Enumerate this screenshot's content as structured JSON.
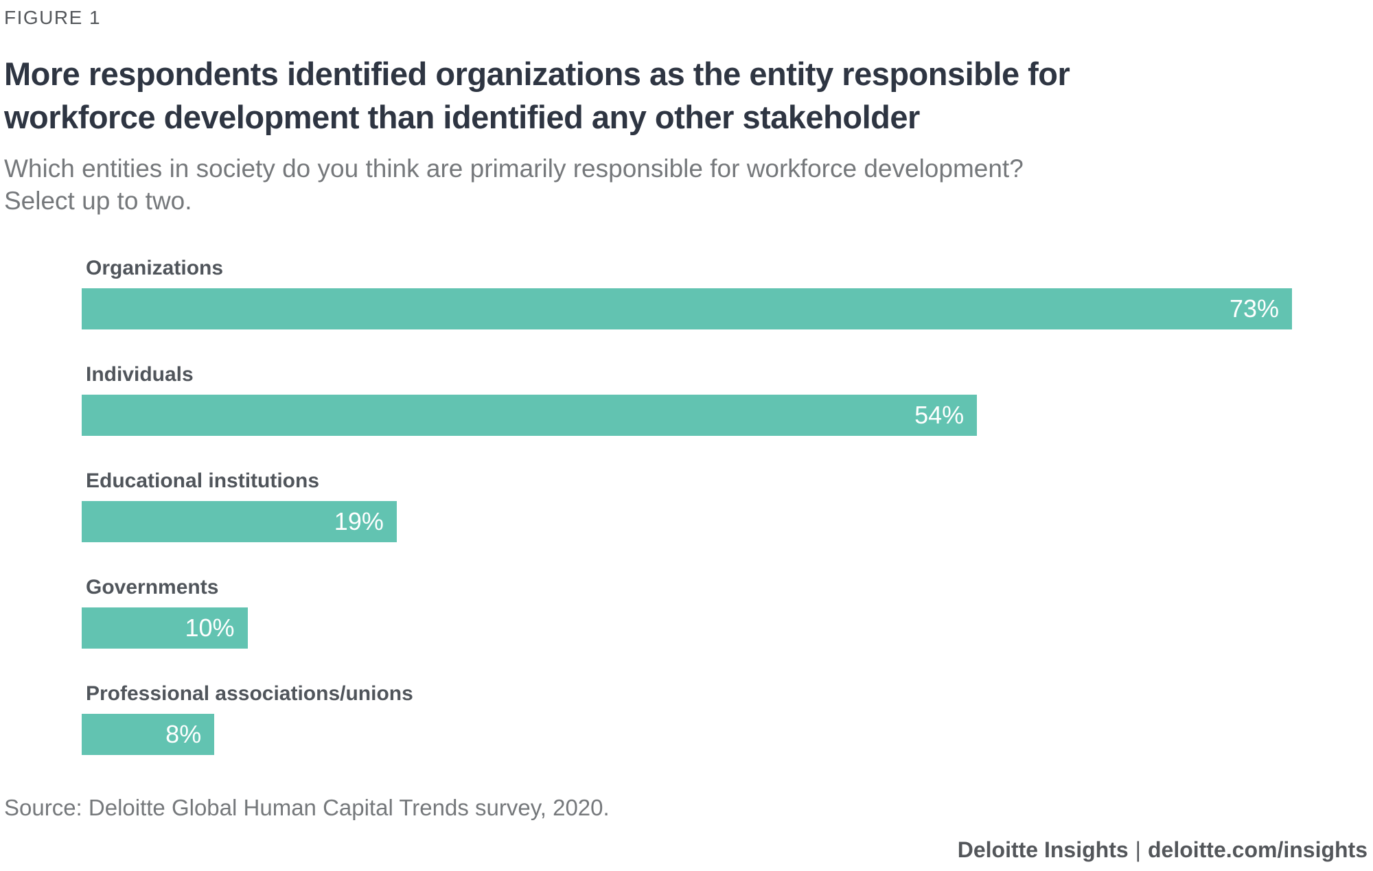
{
  "figure_label": "FIGURE 1",
  "title": {
    "text": "More respondents identified organizations as the entity responsible for workforce development than identified any other stakeholder",
    "lines": [
      "More respondents identified organizations as the entity responsible for",
      "workforce development than identified any other stakeholder"
    ]
  },
  "subtitle": {
    "text": "Which entities in society do you think are primarily responsible for workforce development? Select up to two.",
    "lines": [
      "Which entities in society do you think are primarily responsible for workforce development?",
      "Select up to two."
    ]
  },
  "chart_data": {
    "type": "bar",
    "orientation": "horizontal",
    "title": "",
    "xlabel": "",
    "ylabel": "",
    "categories": [
      "Organizations",
      "Individuals",
      "Educational institutions",
      "Governments",
      "Professional associations/unions"
    ],
    "values": [
      73,
      54,
      19,
      10,
      8
    ],
    "value_labels": [
      "73%",
      "54%",
      "19%",
      "10%",
      "8%"
    ],
    "value_label_position": "inside-end",
    "xlim": [
      0,
      73
    ],
    "grid": false,
    "legend": false,
    "bar_color": "#62c3b1"
  },
  "source": "Source: Deloitte Global Human Capital Trends survey, 2020.",
  "footer": {
    "brand": "Deloitte Insights",
    "separator": "|",
    "url": "deloitte.com/insights"
  },
  "colors": {
    "bar": "#62c3b1",
    "title_text": "#2e3542",
    "figure_label_text": "#53565a",
    "category_label_text": "#50555b",
    "subtitle_text": "#75787b",
    "value_text": "#ffffff",
    "background": "#ffffff"
  }
}
